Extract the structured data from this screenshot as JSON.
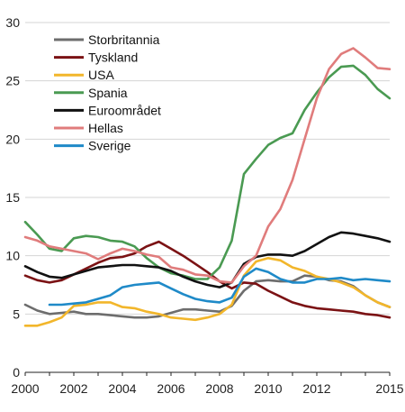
{
  "chart_data": {
    "type": "line",
    "title": "",
    "xlabel": "",
    "ylabel": "",
    "xlim": [
      2000,
      2015
    ],
    "ylim": [
      0,
      30
    ],
    "x_ticks": [
      2000,
      2002,
      2004,
      2006,
      2008,
      2010,
      2012,
      2015
    ],
    "x_tick_labels": [
      "2000",
      "2002",
      "2004",
      "2006",
      "2008",
      "2010",
      "2012",
      "2015"
    ],
    "y_ticks": [
      0,
      5,
      10,
      15,
      20,
      25,
      30
    ],
    "y_tick_labels": [
      "0",
      "5",
      "10",
      "15",
      "20",
      "25",
      "30"
    ],
    "grid": "horizontal",
    "legend_position": "top-left",
    "series": [
      {
        "name": "Storbritannia",
        "color": "#6d6d6d",
        "x": [
          2000,
          2000.5,
          2001,
          2001.5,
          2002,
          2002.5,
          2003,
          2003.5,
          2004,
          2004.5,
          2005,
          2005.5,
          2006,
          2006.5,
          2007,
          2007.5,
          2008,
          2008.5,
          2009,
          2009.5,
          2010,
          2010.5,
          2011,
          2011.5,
          2012,
          2012.5,
          2013,
          2013.5,
          2014,
          2014.5,
          2015
        ],
        "y": [
          5.8,
          5.3,
          5.0,
          5.1,
          5.2,
          5.0,
          5.0,
          4.9,
          4.8,
          4.7,
          4.7,
          4.8,
          5.1,
          5.4,
          5.4,
          5.3,
          5.2,
          5.7,
          7.0,
          7.8,
          7.9,
          7.8,
          7.8,
          8.3,
          8.2,
          7.9,
          7.8,
          7.4,
          6.6,
          6.0,
          5.6
        ]
      },
      {
        "name": "Tyskland",
        "color": "#7b1214",
        "x": [
          2000,
          2000.5,
          2001,
          2001.5,
          2002,
          2002.5,
          2003,
          2003.5,
          2004,
          2004.5,
          2005,
          2005.5,
          2006,
          2006.5,
          2007,
          2007.5,
          2008,
          2008.5,
          2009,
          2009.5,
          2010,
          2010.5,
          2011,
          2011.5,
          2012,
          2012.5,
          2013,
          2013.5,
          2014,
          2014.5,
          2015
        ],
        "y": [
          8.3,
          7.9,
          7.7,
          7.9,
          8.4,
          8.9,
          9.4,
          9.8,
          9.9,
          10.2,
          10.8,
          11.2,
          10.6,
          10.0,
          9.3,
          8.6,
          7.8,
          7.2,
          7.7,
          7.6,
          7.0,
          6.5,
          6.0,
          5.7,
          5.5,
          5.4,
          5.3,
          5.2,
          5.0,
          4.9,
          4.7
        ]
      },
      {
        "name": "USA",
        "color": "#f2b62b",
        "x": [
          2000,
          2000.5,
          2001,
          2001.5,
          2002,
          2002.5,
          2003,
          2003.5,
          2004,
          2004.5,
          2005,
          2005.5,
          2006,
          2006.5,
          2007,
          2007.5,
          2008,
          2008.5,
          2009,
          2009.5,
          2010,
          2010.5,
          2011,
          2011.5,
          2012,
          2012.5,
          2013,
          2013.5,
          2014,
          2014.5,
          2015
        ],
        "y": [
          4.0,
          4.0,
          4.3,
          4.7,
          5.7,
          5.8,
          6.0,
          6.0,
          5.6,
          5.5,
          5.2,
          5.0,
          4.7,
          4.6,
          4.5,
          4.7,
          5.0,
          5.8,
          8.3,
          9.5,
          9.8,
          9.6,
          9.0,
          8.7,
          8.2,
          8.0,
          7.7,
          7.3,
          6.6,
          6.0,
          5.6
        ]
      },
      {
        "name": "Spania",
        "color": "#4a9a52",
        "x": [
          2000,
          2000.5,
          2001,
          2001.5,
          2002,
          2002.5,
          2003,
          2003.5,
          2004,
          2004.5,
          2005,
          2005.5,
          2006,
          2006.5,
          2007,
          2007.5,
          2008,
          2008.5,
          2009,
          2009.5,
          2010,
          2010.5,
          2011,
          2011.5,
          2012,
          2012.5,
          2013,
          2013.5,
          2014,
          2014.5,
          2015
        ],
        "y": [
          12.9,
          11.8,
          10.6,
          10.4,
          11.5,
          11.7,
          11.6,
          11.3,
          11.2,
          10.8,
          9.8,
          9.0,
          8.5,
          8.3,
          8.0,
          8.0,
          9.0,
          11.3,
          17.0,
          18.3,
          19.5,
          20.1,
          20.5,
          22.5,
          24.0,
          25.3,
          26.2,
          26.3,
          25.5,
          24.3,
          23.5
        ]
      },
      {
        "name": "Euroområdet",
        "color": "#111111",
        "x": [
          2000,
          2000.5,
          2001,
          2001.5,
          2002,
          2002.5,
          2003,
          2003.5,
          2004,
          2004.5,
          2005,
          2005.5,
          2006,
          2006.5,
          2007,
          2007.5,
          2008,
          2008.5,
          2009,
          2009.5,
          2010,
          2010.5,
          2011,
          2011.5,
          2012,
          2012.5,
          2013,
          2013.5,
          2014,
          2014.5,
          2015
        ],
        "y": [
          9.1,
          8.6,
          8.2,
          8.1,
          8.4,
          8.7,
          9.0,
          9.1,
          9.2,
          9.2,
          9.1,
          9.0,
          8.7,
          8.2,
          7.8,
          7.5,
          7.3,
          7.7,
          9.3,
          9.9,
          10.1,
          10.1,
          10.0,
          10.4,
          11.0,
          11.6,
          12.0,
          11.9,
          11.7,
          11.5,
          11.2
        ]
      },
      {
        "name": "Hellas",
        "color": "#e07c7c",
        "x": [
          2000,
          2000.5,
          2001,
          2001.5,
          2002,
          2002.5,
          2003,
          2003.5,
          2004,
          2004.5,
          2005,
          2005.5,
          2006,
          2006.5,
          2007,
          2007.5,
          2008,
          2008.5,
          2009,
          2009.5,
          2010,
          2010.5,
          2011,
          2011.5,
          2012,
          2012.5,
          2013,
          2013.5,
          2014,
          2014.5,
          2015
        ],
        "y": [
          11.6,
          11.3,
          10.8,
          10.6,
          10.4,
          10.2,
          9.7,
          10.2,
          10.6,
          10.4,
          10.1,
          9.9,
          9.0,
          8.8,
          8.4,
          8.3,
          7.8,
          7.7,
          9.1,
          10.0,
          12.5,
          14.0,
          16.5,
          20.0,
          23.5,
          26.0,
          27.3,
          27.8,
          27.0,
          26.1,
          26.0
        ]
      },
      {
        "name": "Sverige",
        "color": "#1f8ac8",
        "x": [
          2001,
          2001.5,
          2002,
          2002.5,
          2003,
          2003.5,
          2004,
          2004.5,
          2005,
          2005.5,
          2006,
          2006.5,
          2007,
          2007.5,
          2008,
          2008.5,
          2009,
          2009.5,
          2010,
          2010.5,
          2011,
          2011.5,
          2012,
          2012.5,
          2013,
          2013.5,
          2014,
          2014.5,
          2015
        ],
        "y": [
          5.8,
          5.8,
          5.9,
          6.0,
          6.3,
          6.6,
          7.3,
          7.5,
          7.6,
          7.7,
          7.2,
          6.7,
          6.3,
          6.1,
          6.0,
          6.4,
          8.2,
          8.9,
          8.6,
          8.0,
          7.7,
          7.7,
          8.0,
          8.0,
          8.1,
          7.9,
          8.0,
          7.9,
          7.8
        ]
      }
    ]
  }
}
